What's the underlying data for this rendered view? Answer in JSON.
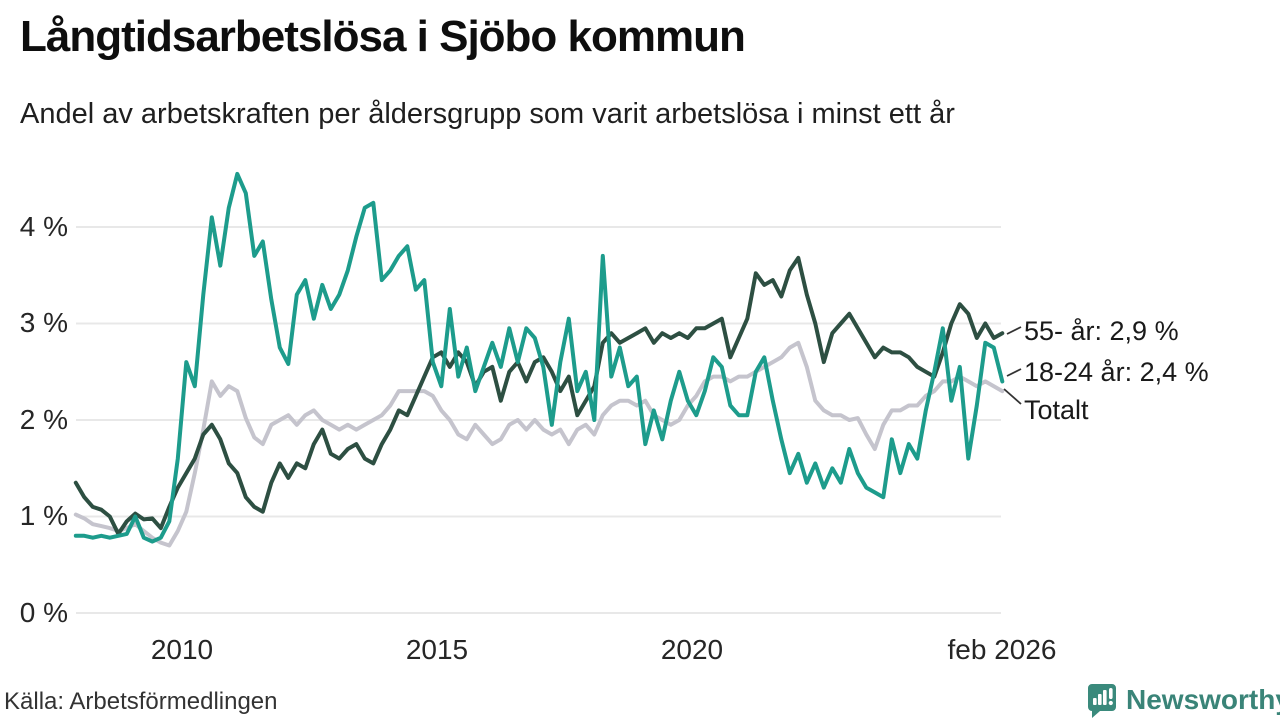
{
  "header": {
    "title": "Långtidsarbetslösa i Sjöbo kommun",
    "subtitle": "Andel av arbetskraften per åldersgrupp som varit arbetslösa i minst ett år"
  },
  "footer": {
    "source": "Källa: Arbetsförmedlingen",
    "brand": "Newsworthy"
  },
  "colors": {
    "series_18_24": "#1d9c8c",
    "series_55_plus": "#2d4f42",
    "series_total": "#c5c4cd",
    "gridline": "#e8e8e8",
    "brand_teal": "#3a8478",
    "text": "#1a1a1a"
  },
  "annotations": [
    {
      "label": "55- år: 2,9 %"
    },
    {
      "label": "18-24 år: 2,4 %"
    },
    {
      "label": "Totalt"
    }
  ],
  "chart_data": {
    "type": "line",
    "title": "Långtidsarbetslösa i Sjöbo kommun",
    "subtitle": "Andel av arbetskraften per åldersgrupp som varit arbetslösa i minst ett år",
    "unit": "%",
    "grid": "horizontal",
    "x_start": "2007-12",
    "x_end": "2026-02",
    "x_step_months": 2,
    "ylim": [
      0,
      4.7
    ],
    "y_tick_values": [
      0,
      1,
      2,
      3,
      4
    ],
    "y_ticks": [
      "0 %",
      "1 %",
      "2 %",
      "3 %",
      "4 %"
    ],
    "x_ticks": [
      {
        "label": "2010",
        "t": 2010.0
      },
      {
        "label": "2015",
        "t": 2015.0
      },
      {
        "label": "2020",
        "t": 2020.0
      },
      {
        "label": "feb 2026",
        "t": 2026.083
      }
    ],
    "series": [
      {
        "name": "Totalt",
        "color": "#c5c4cd",
        "end_value": 2.3,
        "values": [
          1.02,
          0.98,
          0.92,
          0.9,
          0.88,
          0.85,
          0.88,
          0.92,
          0.85,
          0.78,
          0.73,
          0.7,
          0.85,
          1.05,
          1.45,
          1.9,
          2.4,
          2.25,
          2.35,
          2.3,
          2.02,
          1.82,
          1.75,
          1.95,
          2.0,
          2.05,
          1.95,
          2.05,
          2.1,
          2.0,
          1.95,
          1.9,
          1.95,
          1.9,
          1.95,
          2.0,
          2.05,
          2.15,
          2.3,
          2.3,
          2.3,
          2.3,
          2.25,
          2.1,
          2.0,
          1.85,
          1.8,
          1.95,
          1.85,
          1.75,
          1.8,
          1.95,
          2.0,
          1.9,
          2.0,
          1.9,
          1.85,
          1.9,
          1.75,
          1.9,
          1.95,
          1.85,
          2.05,
          2.15,
          2.2,
          2.2,
          2.15,
          2.2,
          2.05,
          2.0,
          1.95,
          2.0,
          2.15,
          2.25,
          2.4,
          2.45,
          2.45,
          2.4,
          2.45,
          2.45,
          2.5,
          2.55,
          2.6,
          2.65,
          2.75,
          2.8,
          2.55,
          2.2,
          2.1,
          2.05,
          2.05,
          2.0,
          2.02,
          1.85,
          1.7,
          1.95,
          2.1,
          2.1,
          2.15,
          2.15,
          2.25,
          2.3,
          2.4,
          2.4,
          2.45,
          2.4,
          2.35,
          2.4,
          2.35,
          2.3
        ]
      },
      {
        "name": "55- år",
        "color": "#2d4f42",
        "end_value": 2.9,
        "values": [
          1.35,
          1.2,
          1.1,
          1.07,
          1.0,
          0.82,
          0.95,
          1.03,
          0.97,
          0.98,
          0.88,
          1.1,
          1.3,
          1.45,
          1.6,
          1.85,
          1.95,
          1.8,
          1.55,
          1.45,
          1.2,
          1.1,
          1.05,
          1.35,
          1.55,
          1.4,
          1.55,
          1.5,
          1.75,
          1.9,
          1.65,
          1.6,
          1.7,
          1.75,
          1.6,
          1.55,
          1.75,
          1.9,
          2.1,
          2.05,
          2.25,
          2.45,
          2.65,
          2.7,
          2.55,
          2.7,
          2.6,
          2.35,
          2.5,
          2.55,
          2.2,
          2.5,
          2.6,
          2.4,
          2.6,
          2.65,
          2.5,
          2.3,
          2.45,
          2.05,
          2.2,
          2.35,
          2.8,
          2.9,
          2.8,
          2.85,
          2.9,
          2.95,
          2.8,
          2.9,
          2.85,
          2.9,
          2.85,
          2.95,
          2.95,
          3.0,
          3.05,
          2.65,
          2.85,
          3.05,
          3.52,
          3.4,
          3.45,
          3.28,
          3.55,
          3.68,
          3.3,
          3.0,
          2.6,
          2.9,
          3.0,
          3.1,
          2.95,
          2.8,
          2.65,
          2.75,
          2.7,
          2.7,
          2.65,
          2.55,
          2.5,
          2.45,
          2.7,
          3.0,
          3.2,
          3.1,
          2.85,
          3.0,
          2.85,
          2.9
        ]
      },
      {
        "name": "18-24 år",
        "color": "#1d9c8c",
        "end_value": 2.4,
        "values": [
          0.8,
          0.8,
          0.78,
          0.8,
          0.78,
          0.8,
          0.82,
          1.0,
          0.78,
          0.74,
          0.78,
          0.95,
          1.6,
          2.6,
          2.35,
          3.3,
          4.1,
          3.6,
          4.2,
          4.55,
          4.35,
          3.7,
          3.85,
          3.25,
          2.75,
          2.58,
          3.3,
          3.45,
          3.05,
          3.4,
          3.15,
          3.3,
          3.55,
          3.9,
          4.2,
          4.25,
          3.45,
          3.55,
          3.7,
          3.8,
          3.35,
          3.45,
          2.6,
          2.35,
          3.15,
          2.45,
          2.75,
          2.3,
          2.55,
          2.8,
          2.55,
          2.95,
          2.6,
          2.95,
          2.85,
          2.55,
          1.95,
          2.6,
          3.05,
          2.3,
          2.5,
          2.0,
          3.7,
          2.45,
          2.75,
          2.35,
          2.45,
          1.75,
          2.1,
          1.8,
          2.2,
          2.5,
          2.2,
          2.05,
          2.3,
          2.65,
          2.55,
          2.15,
          2.05,
          2.05,
          2.5,
          2.65,
          2.2,
          1.8,
          1.45,
          1.65,
          1.35,
          1.55,
          1.3,
          1.5,
          1.35,
          1.7,
          1.45,
          1.3,
          1.25,
          1.2,
          1.8,
          1.45,
          1.75,
          1.6,
          2.1,
          2.5,
          2.95,
          2.2,
          2.55,
          1.6,
          2.15,
          2.8,
          2.75,
          2.4
        ]
      }
    ]
  }
}
